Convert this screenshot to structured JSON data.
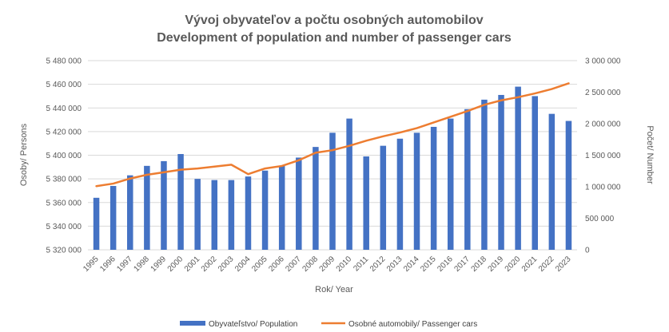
{
  "chart_data": {
    "type": "bar",
    "title": "Vývoj obyvateľov a počtu osobných automobilov",
    "subtitle": "Development of population and number of passenger cars",
    "xlabel": "Rok/ Year",
    "ylabel": "Osoby/ Persons",
    "y2label": "Počet/ Number",
    "categories": [
      "1995",
      "1996",
      "1997",
      "1998",
      "1999",
      "2000",
      "2001",
      "2002",
      "2003",
      "2004",
      "2005",
      "2006",
      "2007",
      "2008",
      "2009",
      "2010",
      "2011",
      "2012",
      "2013",
      "2014",
      "2015",
      "2016",
      "2017",
      "2018",
      "2019",
      "2020",
      "2021",
      "2022",
      "2023"
    ],
    "ylim": [
      5320000,
      5480000
    ],
    "y_ticks": [
      5320000,
      5340000,
      5360000,
      5380000,
      5400000,
      5420000,
      5440000,
      5460000,
      5480000
    ],
    "y_tick_labels": [
      "5 320 000",
      "5 340 000",
      "5 360 000",
      "5 380 000",
      "5 400 000",
      "5 420 000",
      "5 440 000",
      "5 460 000",
      "5 480 000"
    ],
    "y2lim": [
      0,
      3000000
    ],
    "y2_ticks": [
      0,
      500000,
      1000000,
      1500000,
      2000000,
      2500000,
      3000000
    ],
    "y2_tick_labels": [
      "0",
      "500 000",
      "1 000 000",
      "1 500 000",
      "2 000 000",
      "2 500 000",
      "3 000 000"
    ],
    "grid": true,
    "legend_position": "bottom",
    "series": [
      {
        "name": "Obyvateľstvo/ Population",
        "kind": "bar",
        "axis": "left",
        "color": "#4472C4",
        "values": [
          5364000,
          5374000,
          5383000,
          5391000,
          5395000,
          5401000,
          5380000,
          5379000,
          5379000,
          5382000,
          5387000,
          5391000,
          5398000,
          5407000,
          5419000,
          5431000,
          5399000,
          5408000,
          5414000,
          5419000,
          5424000,
          5431000,
          5439000,
          5447000,
          5451000,
          5458000,
          5450000,
          5435000,
          5429000
        ]
      },
      {
        "name": "Osobné automobily/ Passenger cars",
        "kind": "line",
        "axis": "right",
        "color": "#ED7D31",
        "values": [
          1010000,
          1050000,
          1130000,
          1190000,
          1230000,
          1270000,
          1290000,
          1320000,
          1350000,
          1200000,
          1290000,
          1330000,
          1420000,
          1540000,
          1580000,
          1650000,
          1730000,
          1800000,
          1860000,
          1930000,
          2020000,
          2110000,
          2200000,
          2300000,
          2370000,
          2420000,
          2480000,
          2550000,
          2640000
        ]
      }
    ]
  }
}
